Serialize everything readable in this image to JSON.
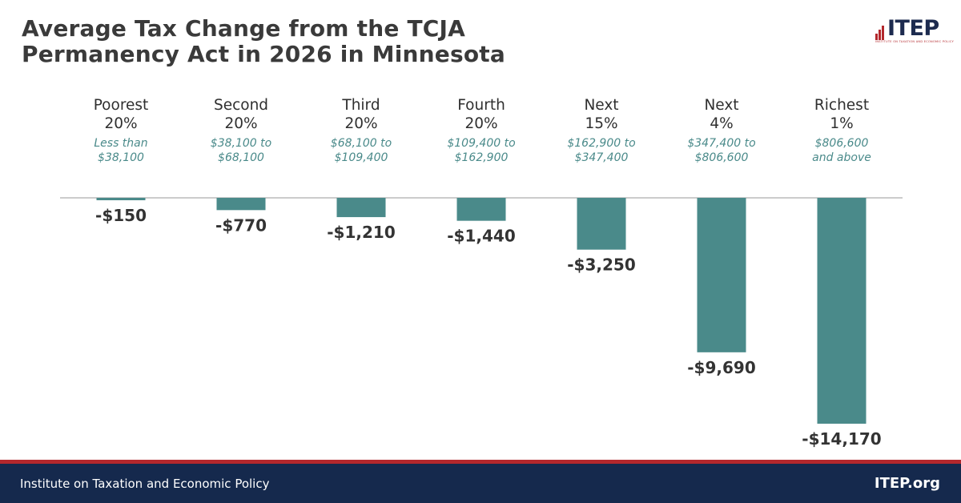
{
  "title_line1": "Average Tax Change from the TCJA",
  "title_line2": "Permanency Act in 2026 in Minnesota",
  "logo": {
    "word": "ITEP",
    "tagline": "INSTITUTE ON TAXATION AND ECONOMIC POLICY"
  },
  "colors": {
    "bar": "#4a8a8a",
    "accent": "#b3282d",
    "navy": "#15294d"
  },
  "footer": {
    "org": "Institute on Taxation and Economic Policy",
    "site": "ITEP.org"
  },
  "chart_data": {
    "type": "bar",
    "title": "Average Tax Change from the TCJA Permanency Act in 2026 in Minnesota",
    "categories": [
      {
        "name": [
          "Poorest",
          "20%"
        ],
        "range": [
          "Less than",
          "$38,100"
        ]
      },
      {
        "name": [
          "Second",
          "20%"
        ],
        "range": [
          "$38,100 to",
          "$68,100"
        ]
      },
      {
        "name": [
          "Third",
          "20%"
        ],
        "range": [
          "$68,100 to",
          "$109,400"
        ]
      },
      {
        "name": [
          "Fourth",
          "20%"
        ],
        "range": [
          "$109,400 to",
          "$162,900"
        ]
      },
      {
        "name": [
          "Next",
          "15%"
        ],
        "range": [
          "$162,900 to",
          "$347,400"
        ]
      },
      {
        "name": [
          "Next",
          "4%"
        ],
        "range": [
          "$347,400 to",
          "$806,600"
        ]
      },
      {
        "name": [
          "Richest",
          "1%"
        ],
        "range": [
          "$806,600",
          "and above"
        ]
      }
    ],
    "values": [
      -150,
      -770,
      -1210,
      -1440,
      -3250,
      -9690,
      -14170
    ],
    "value_labels": [
      "-$150",
      "-$770",
      "-$1,210",
      "-$1,440",
      "-$3,250",
      "-$9,690",
      "-$14,170"
    ],
    "ylim": [
      -14170,
      0
    ],
    "grid": false,
    "legend": "none"
  }
}
